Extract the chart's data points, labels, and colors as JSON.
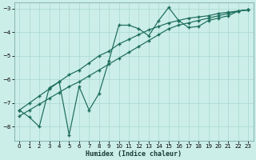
{
  "xlabel": "Humidex (Indice chaleur)",
  "bg_color": "#cceee8",
  "grid_color": "#aad8d0",
  "line_color": "#1a6b5a",
  "x": [
    0,
    1,
    2,
    3,
    4,
    5,
    6,
    7,
    8,
    9,
    10,
    11,
    12,
    13,
    14,
    15,
    16,
    17,
    18,
    19,
    20,
    21,
    22,
    23
  ],
  "y_jagged": [
    -7.3,
    -7.6,
    -8.0,
    -6.35,
    -6.1,
    -8.35,
    -6.3,
    -7.3,
    -6.6,
    -5.2,
    -3.7,
    -3.7,
    -3.85,
    -4.15,
    -3.5,
    -2.95,
    -3.5,
    -3.8,
    -3.75,
    -3.5,
    -3.4,
    -3.3,
    -3.1,
    -3.05
  ],
  "y_reg1": [
    -7.3,
    -7.0,
    -6.7,
    -6.4,
    -6.1,
    -5.8,
    -5.6,
    -5.3,
    -5.0,
    -4.8,
    -4.5,
    -4.3,
    -4.1,
    -3.9,
    -3.75,
    -3.6,
    -3.5,
    -3.4,
    -3.35,
    -3.3,
    -3.2,
    -3.15,
    -3.1,
    -3.05
  ],
  "y_reg2": [
    -7.55,
    -7.3,
    -7.05,
    -6.8,
    -6.55,
    -6.3,
    -6.1,
    -5.85,
    -5.6,
    -5.35,
    -5.1,
    -4.85,
    -4.6,
    -4.35,
    -4.1,
    -3.85,
    -3.7,
    -3.6,
    -3.5,
    -3.4,
    -3.3,
    -3.2,
    -3.1,
    -3.05
  ],
  "ylim": [
    -8.6,
    -2.75
  ],
  "xlim": [
    -0.5,
    23.5
  ],
  "yticks": [
    -8,
    -7,
    -6,
    -5,
    -4,
    -3
  ],
  "xticks": [
    0,
    1,
    2,
    3,
    4,
    5,
    6,
    7,
    8,
    9,
    10,
    11,
    12,
    13,
    14,
    15,
    16,
    17,
    18,
    19,
    20,
    21,
    22,
    23
  ]
}
